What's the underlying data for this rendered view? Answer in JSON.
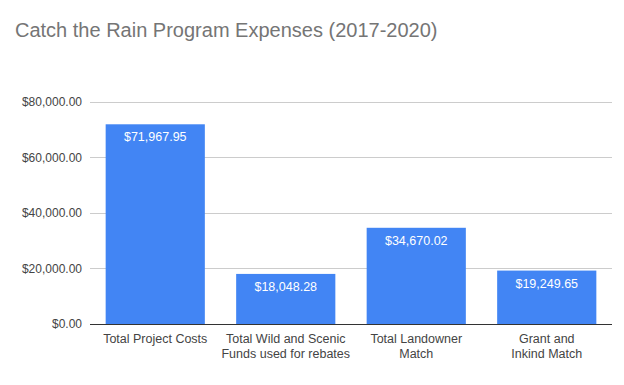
{
  "chart_data": {
    "type": "bar",
    "title": "Catch the Rain Program Expenses (2017-2020)",
    "categories": [
      "Total Project Costs",
      "Total Wild and Scenic Funds used for rebates",
      "Total Landowner Match",
      "Grant and Inkind Match"
    ],
    "values": [
      71967.95,
      18048.28,
      34670.02,
      19249.65
    ],
    "value_labels": [
      "$71,967.95",
      "$18,048.28",
      "$34,670.02",
      "$19,249.65"
    ],
    "color": "#4285f4",
    "ylim": [
      0,
      80000
    ],
    "yticks": [
      {
        "value": 0,
        "label": "$0.00"
      },
      {
        "value": 20000,
        "label": "$20,000.00"
      },
      {
        "value": 40000,
        "label": "$40,000.00"
      },
      {
        "value": 60000,
        "label": "$60,000.00"
      },
      {
        "value": 80000,
        "label": "$80,000.00"
      }
    ],
    "grid": true,
    "data_labels": true
  }
}
